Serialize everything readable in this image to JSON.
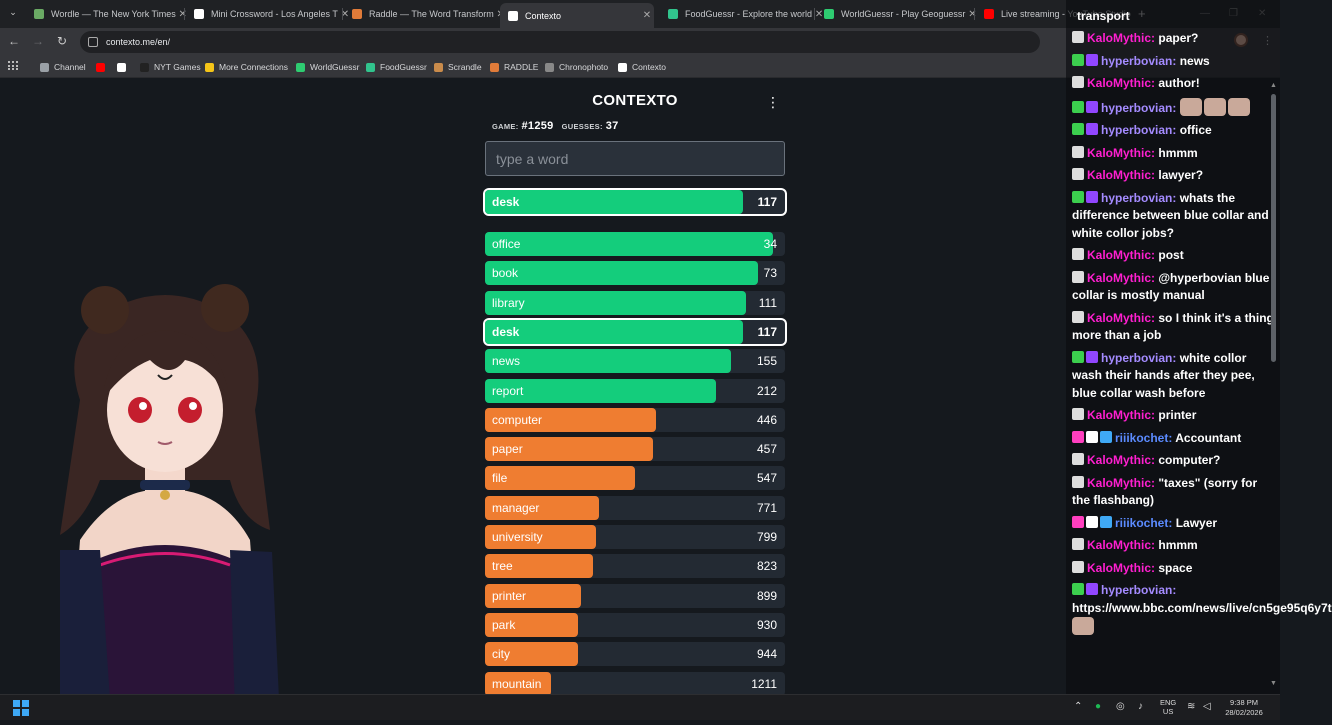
{
  "browser": {
    "tabs": [
      {
        "title": "Wordle — The New York Times",
        "color": "#6aaa64"
      },
      {
        "title": "Mini Crossword - Los Angeles T",
        "color": "#ffffff"
      },
      {
        "title": "Raddle — The Word Transform",
        "color": "#e07b39"
      },
      {
        "title": "Contexto",
        "color": "#ffffff"
      },
      {
        "title": "FoodGuessr - Explore the world",
        "color": "#31c48d"
      },
      {
        "title": "WorldGuessr - Play Geoguessr",
        "color": "#2ecc71"
      },
      {
        "title": "Live streaming - YouTube Studio",
        "color": "#ff0000"
      }
    ],
    "url": "contexto.me/en/",
    "bookmarks": [
      {
        "label": "Channel",
        "color": "#9aa0a6"
      },
      {
        "label": "",
        "color": "#ff0000"
      },
      {
        "label": "",
        "color": "#ffffff"
      },
      {
        "label": "NYT Games",
        "color": "#222222"
      },
      {
        "label": "More Connections",
        "color": "#f5c518"
      },
      {
        "label": "WorldGuessr",
        "color": "#2ecc71"
      },
      {
        "label": "FoodGuessr",
        "color": "#31c48d"
      },
      {
        "label": "Scrandle",
        "color": "#c98b4b"
      },
      {
        "label": "RADDLE",
        "color": "#e07b39"
      },
      {
        "label": "Chronophoto",
        "color": "#888888"
      },
      {
        "label": "Contexto",
        "color": "#ffffff"
      }
    ]
  },
  "game": {
    "title": "CONTEXTO",
    "game_label": "GAME:",
    "game_number": "#1259",
    "guesses_label": "GUESSES:",
    "guesses": "37",
    "placeholder": "type a word",
    "last_guess": {
      "word": "desk",
      "rank": 117,
      "fraction": 0.86,
      "color": "#14cd7c"
    },
    "guesses_list": [
      {
        "word": "office",
        "rank": 34,
        "fraction": 0.96,
        "color": "#14cd7c"
      },
      {
        "word": "book",
        "rank": 73,
        "fraction": 0.91,
        "color": "#14cd7c"
      },
      {
        "word": "library",
        "rank": 111,
        "fraction": 0.87,
        "color": "#14cd7c"
      },
      {
        "word": "desk",
        "rank": 117,
        "fraction": 0.86,
        "color": "#14cd7c"
      },
      {
        "word": "news",
        "rank": 155,
        "fraction": 0.82,
        "color": "#14cd7c"
      },
      {
        "word": "report",
        "rank": 212,
        "fraction": 0.77,
        "color": "#14cd7c"
      },
      {
        "word": "computer",
        "rank": 446,
        "fraction": 0.57,
        "color": "#ef7d31"
      },
      {
        "word": "paper",
        "rank": 457,
        "fraction": 0.56,
        "color": "#ef7d31"
      },
      {
        "word": "file",
        "rank": 547,
        "fraction": 0.5,
        "color": "#ef7d31"
      },
      {
        "word": "manager",
        "rank": 771,
        "fraction": 0.38,
        "color": "#ef7d31"
      },
      {
        "word": "university",
        "rank": 799,
        "fraction": 0.37,
        "color": "#ef7d31"
      },
      {
        "word": "tree",
        "rank": 823,
        "fraction": 0.36,
        "color": "#ef7d31"
      },
      {
        "word": "printer",
        "rank": 899,
        "fraction": 0.32,
        "color": "#ef7d31"
      },
      {
        "word": "park",
        "rank": 930,
        "fraction": 0.31,
        "color": "#ef7d31"
      },
      {
        "word": "city",
        "rank": 944,
        "fraction": 0.31,
        "color": "#ef7d31"
      },
      {
        "word": "mountain",
        "rank": 1211,
        "fraction": 0.22,
        "color": "#ef7d31"
      }
    ]
  },
  "chat": {
    "top_line": "transport",
    "messages": [
      {
        "user": "KaloMythic",
        "color": "#ff1fd0",
        "badges": [
          "#dddddd"
        ],
        "text": "paper?",
        "emotes": 0
      },
      {
        "user": "hyperbovian",
        "color": "#a48bff",
        "badges": [
          "#3ccf4e",
          "#9146ff"
        ],
        "text": "news",
        "emotes": 0
      },
      {
        "user": "KaloMythic",
        "color": "#ff1fd0",
        "badges": [
          "#dddddd"
        ],
        "text": "author!",
        "emotes": 0
      },
      {
        "user": "hyperbovian",
        "color": "#a48bff",
        "badges": [
          "#3ccf4e",
          "#9146ff"
        ],
        "text": "",
        "emotes": 3
      },
      {
        "user": "hyperbovian",
        "color": "#a48bff",
        "badges": [
          "#3ccf4e",
          "#9146ff"
        ],
        "text": "office",
        "emotes": 0
      },
      {
        "user": "KaloMythic",
        "color": "#ff1fd0",
        "badges": [
          "#dddddd"
        ],
        "text": "hmmm",
        "emotes": 0
      },
      {
        "user": "KaloMythic",
        "color": "#ff1fd0",
        "badges": [
          "#dddddd"
        ],
        "text": "lawyer?",
        "emotes": 0
      },
      {
        "user": "hyperbovian",
        "color": "#a48bff",
        "badges": [
          "#3ccf4e",
          "#9146ff"
        ],
        "text": "whats the difference between blue collar and white collor jobs?",
        "emotes": 0
      },
      {
        "user": "KaloMythic",
        "color": "#ff1fd0",
        "badges": [
          "#dddddd"
        ],
        "text": "post",
        "emotes": 0
      },
      {
        "user": "KaloMythic",
        "color": "#ff1fd0",
        "badges": [
          "#dddddd"
        ],
        "text": "@hyperbovian blue collar is mostly manual",
        "emotes": 0
      },
      {
        "user": "KaloMythic",
        "color": "#ff1fd0",
        "badges": [
          "#dddddd"
        ],
        "text": "so I think it's a thing more than a job",
        "emotes": 0
      },
      {
        "user": "hyperbovian",
        "color": "#a48bff",
        "badges": [
          "#3ccf4e",
          "#9146ff"
        ],
        "text": "white collor wash their hands after they pee, blue collar wash before",
        "emotes": 0
      },
      {
        "user": "KaloMythic",
        "color": "#ff1fd0",
        "badges": [
          "#dddddd"
        ],
        "text": "printer",
        "emotes": 0
      },
      {
        "user": "riiikochet",
        "color": "#5b8bff",
        "badges": [
          "#ff3fbf",
          "#ffffff",
          "#3fa9f5"
        ],
        "text": "Accountant",
        "emotes": 0
      },
      {
        "user": "KaloMythic",
        "color": "#ff1fd0",
        "badges": [
          "#dddddd"
        ],
        "text": "computer?",
        "emotes": 0
      },
      {
        "user": "KaloMythic",
        "color": "#ff1fd0",
        "badges": [
          "#dddddd"
        ],
        "text": "\"taxes\" (sorry for the flashbang)",
        "emotes": 0
      },
      {
        "user": "riiikochet",
        "color": "#5b8bff",
        "badges": [
          "#ff3fbf",
          "#ffffff",
          "#3fa9f5"
        ],
        "text": "Lawyer",
        "emotes": 0
      },
      {
        "user": "KaloMythic",
        "color": "#ff1fd0",
        "badges": [
          "#dddddd"
        ],
        "text": "hmmm",
        "emotes": 0
      },
      {
        "user": "KaloMythic",
        "color": "#ff1fd0",
        "badges": [
          "#dddddd"
        ],
        "text": "space",
        "emotes": 0
      },
      {
        "user": "hyperbovian",
        "color": "#a48bff",
        "badges": [
          "#3ccf4e",
          "#9146ff"
        ],
        "text": "https://www.bbc.com/news/live/cn5ge95q6y7t",
        "emotes": 1
      }
    ]
  },
  "taskbar": {
    "lang_1": "ENG",
    "lang_2": "US",
    "time": "9:38 PM",
    "date": "28/02/2026"
  }
}
